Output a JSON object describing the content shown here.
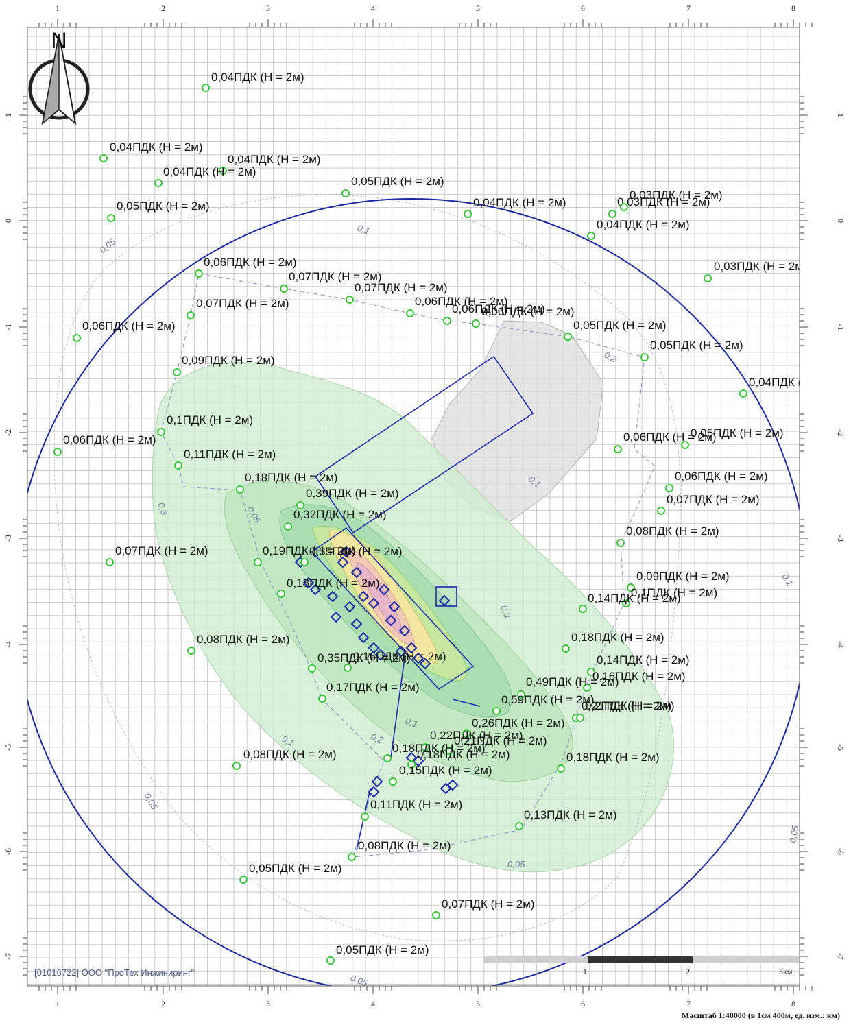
{
  "north_label": "N",
  "copyright": "[01016722] ООО \"ПроТех Инжиниринг\"",
  "scale_text": "Масштаб 1:40000 (в 1см 400м, ед. изм.: км)",
  "scalebar": {
    "ticks": [
      "1",
      "2",
      "3км"
    ]
  },
  "axes": {
    "x_ticks": [
      "1",
      "2",
      "3",
      "4",
      "5",
      "6",
      "7",
      "8"
    ],
    "y_ticks": [
      "1",
      "0",
      "-1",
      "-2",
      "-3",
      "-4",
      "-5",
      "-6",
      "-7"
    ]
  },
  "isoline_labels": [
    "0,05",
    "0,1",
    "0,2",
    "0,3",
    "0,05",
    "0,1",
    "0,3",
    "0,1",
    "0,2",
    "0,1",
    "0,05",
    "0,05",
    "0,1",
    "0,05",
    "0,05"
  ],
  "calc_points": [
    "0,04ПДК (Н = 2м)",
    "0,04ПДК (Н = 2м)",
    "0,04ПДК (Н = 2м)",
    "0,04ПДК (Н = 2м)",
    "0,05ПДК (Н = 2м)",
    "0,05ПДК (Н = 2м)",
    "0,04ПДК (Н = 2м)",
    "0,03ПДК (Н = 2м)",
    "0,03ПДК (Н = 2м)",
    "0,04ПДК (Н = 2м)",
    "0,03ПДК (Н = 2м)",
    "0,06ПДК (Н = 2м)",
    "0,07ПДК (Н = 2м)",
    "0,07ПДК (Н = 2м)",
    "0,07ПДК (Н = 2м)",
    "0,06ПДК (Н = 2м)",
    "0,06ПДК (Н = 2м)",
    "0,06ПДК (Н = 2м)",
    "0,06ПДК (Н = 2м)",
    "0,05ПДК (Н = 2м)",
    "0,05ПДК (Н = 2м)",
    "0,09ПДК (Н = 2м)",
    "0,04ПДК (Н = 2м)",
    "0,1ПДК (Н = 2м)",
    "0,06ПДК (Н = 2м)",
    "0,06ПДК (Н = 2м)",
    "0,05ПДК (Н = 2м)",
    "0,11ПДК (Н = 2м)",
    "0,18ПДК (Н = 2м)",
    "0,06ПДК (Н = 2м)",
    "0,39ПДК (Н = 2м)",
    "0,07ПДК (Н = 2м)",
    "0,32ПДК (Н = 2м)",
    "0,08ПДК (Н = 2м)",
    "0,07ПДК (Н = 2м)",
    "0,19ПДК (Н = 2м)",
    "0,35ПДК (Н = 2м)",
    "0,09ПДК (Н = 2м)",
    "0,18ПДК (Н = 2м)",
    "0,1ПДК (Н = 2м)",
    "0,14ПДК (Н = 2м)",
    "0,08ПДК (Н = 2м)",
    "0,18ПДК (Н = 2м)",
    "0,14ПДК (Н = 2м)",
    "0,16ПДК (Н = 2м)",
    "0,35ПДК (Н = 2м)",
    "0,16ПДК (Н = 2м)",
    "0,49ПДК (Н = 2м)",
    "0,17ПДК (Н = 2м)",
    "0,59ПДК (Н = 2м)",
    "0,21ПДК (Н = 2м)",
    "0,2ПДК (Н = 2м)",
    "0,26ПДК (Н = 2м)",
    "0,22ПДК (Н = 2м)",
    "0,21ПДК (Н = 2м)",
    "0,08ПДК (Н = 2м)",
    "0,18ПДК (Н = 2м)",
    "0,18ПДК (Н = 2м)",
    "0,18ПДК (Н = 2м)",
    "0,15ПДК (Н = 2м)",
    "0,11ПДК (Н = 2м)",
    "0,13ПДК (Н = 2м)",
    "0,08ПДК (Н = 2м)",
    "0,05ПДК (Н = 2м)",
    "0,07ПДК (Н = 2м)",
    "0,05ПДК (Н = 2м)"
  ]
}
